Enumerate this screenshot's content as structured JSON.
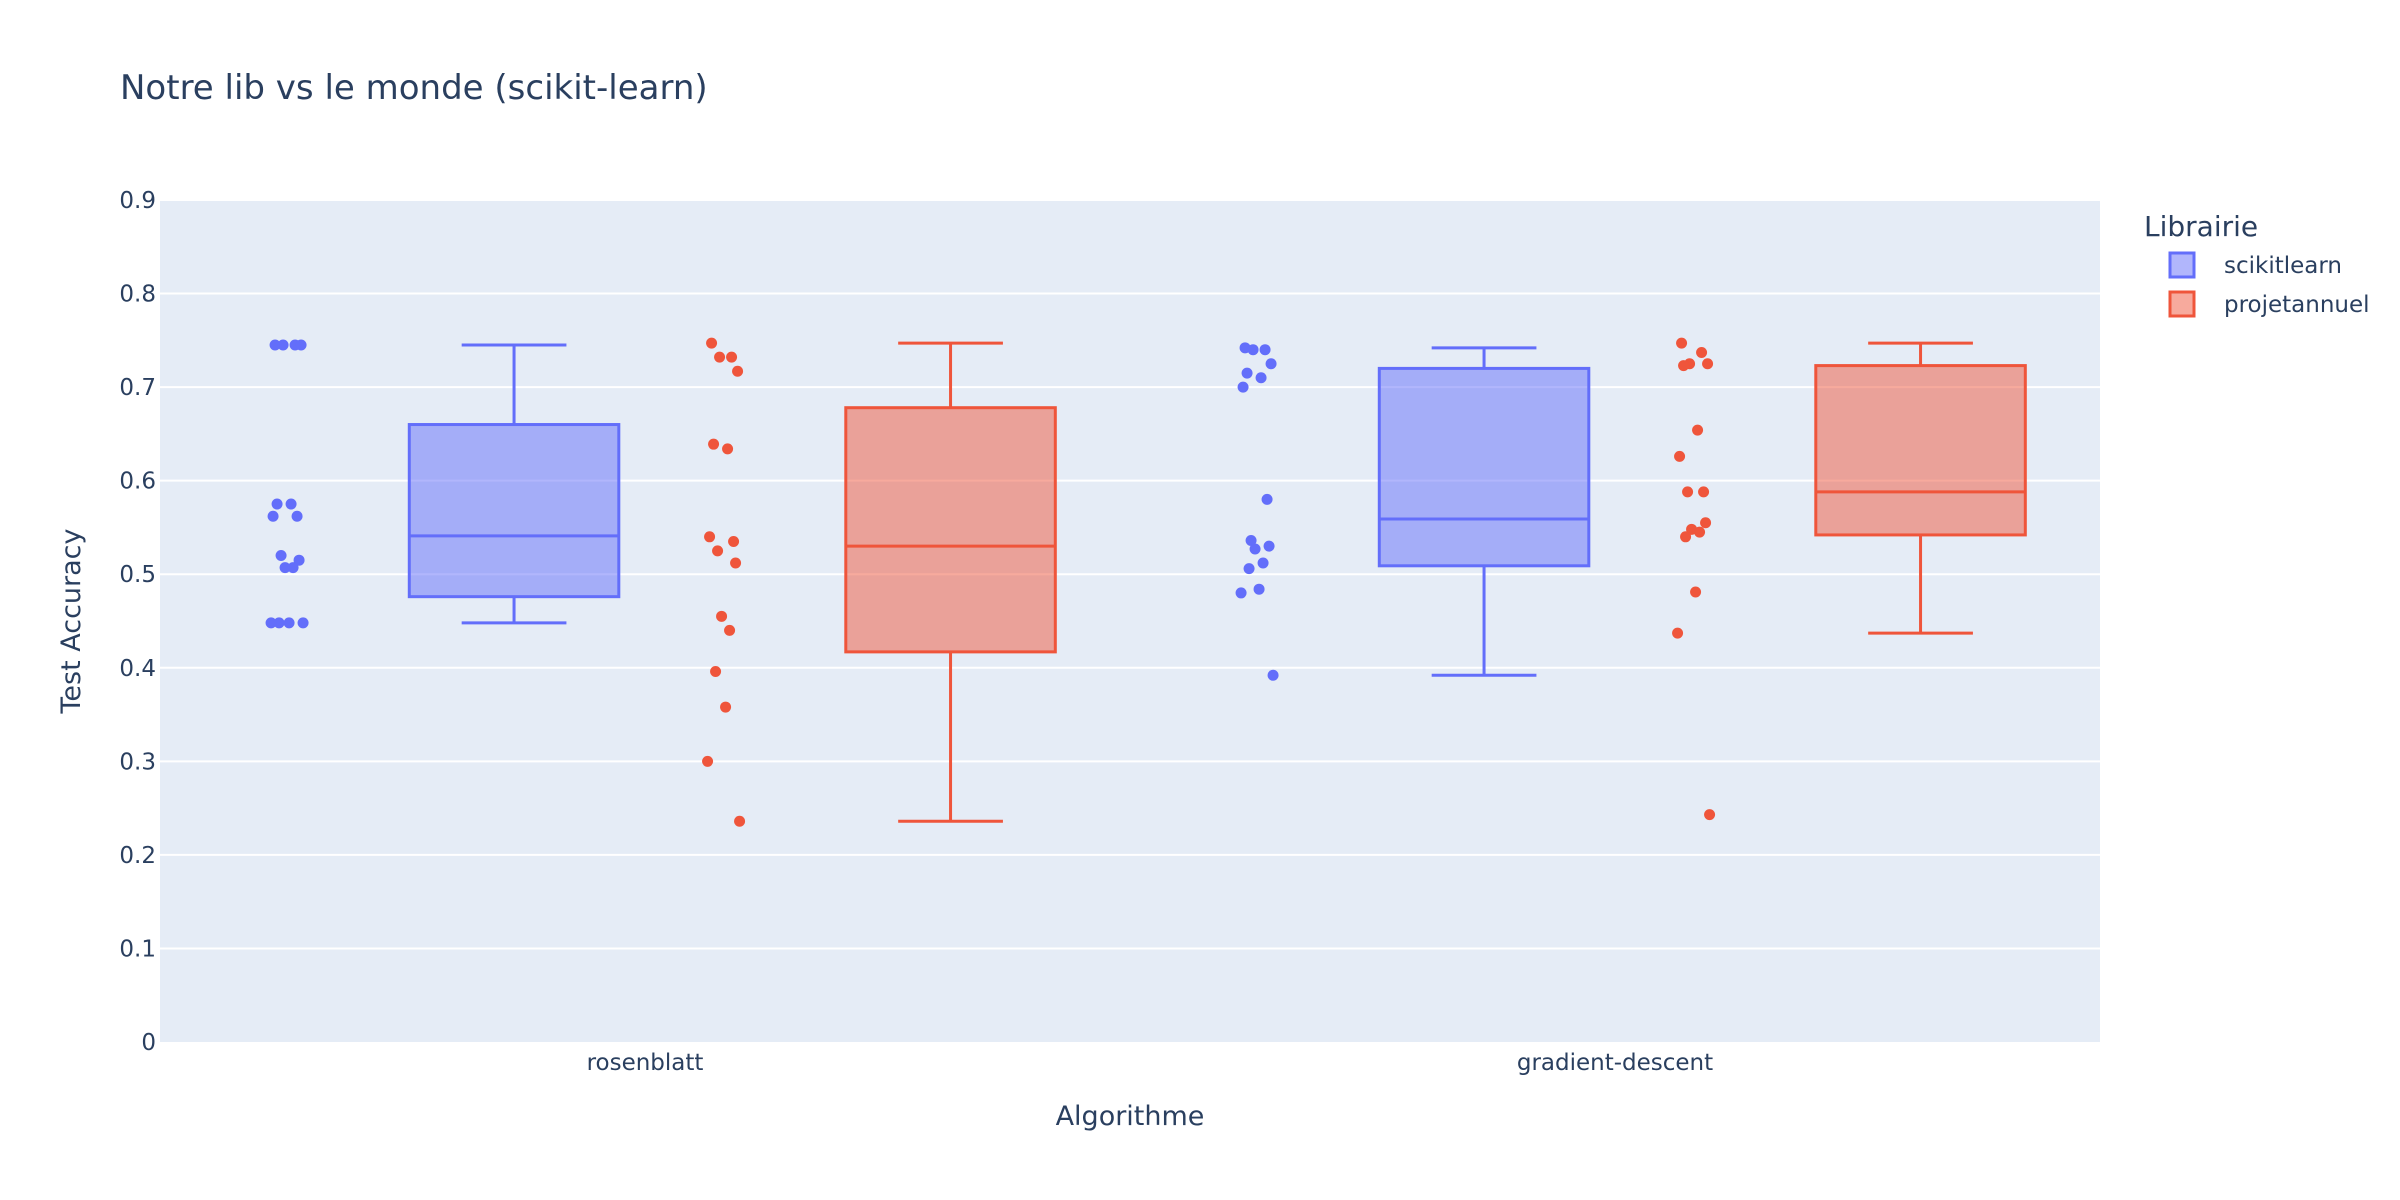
{
  "chart_data": {
    "type": "box",
    "title": "Notre lib vs le monde (scikit-learn)",
    "xlabel": "Algorithme",
    "ylabel": "Test Accuracy",
    "ylim": [
      0,
      0.9
    ],
    "yticks": [
      0,
      0.1,
      0.2,
      0.3,
      0.4,
      0.5,
      0.6,
      0.7,
      0.8,
      0.9
    ],
    "ytick_labels": [
      "0",
      "0.1",
      "0.2",
      "0.3",
      "0.4",
      "0.5",
      "0.6",
      "0.7",
      "0.8",
      "0.9"
    ],
    "categories": [
      "rosenblatt",
      "gradient-descent"
    ],
    "grid": true,
    "legend_position": "top-right",
    "legend_title": "Librairie",
    "series": [
      {
        "name": "scikitlearn",
        "color": "#636efa",
        "fill": "rgba(99,110,250,0.5)",
        "boxes": [
          {
            "category": "rosenblatt",
            "min": 0.448,
            "q1": 0.476,
            "median": 0.541,
            "q3": 0.66,
            "max": 0.745,
            "points": [
              0.745,
              0.745,
              0.745,
              0.745,
              0.575,
              0.575,
              0.562,
              0.562,
              0.52,
              0.515,
              0.507,
              0.507,
              0.448,
              0.448,
              0.448,
              0.448
            ]
          },
          {
            "category": "gradient-descent",
            "min": 0.392,
            "q1": 0.509,
            "median": 0.559,
            "q3": 0.72,
            "max": 0.742,
            "points": [
              0.742,
              0.74,
              0.74,
              0.725,
              0.715,
              0.71,
              0.7,
              0.58,
              0.536,
              0.53,
              0.527,
              0.512,
              0.506,
              0.484,
              0.48,
              0.392
            ]
          }
        ]
      },
      {
        "name": "projetannuel",
        "color": "#ef553b",
        "fill": "rgba(239,85,59,0.5)",
        "boxes": [
          {
            "category": "rosenblatt",
            "min": 0.236,
            "q1": 0.417,
            "median": 0.53,
            "q3": 0.678,
            "max": 0.747,
            "points": [
              0.747,
              0.732,
              0.732,
              0.717,
              0.639,
              0.634,
              0.54,
              0.535,
              0.525,
              0.512,
              0.455,
              0.44,
              0.396,
              0.358,
              0.3,
              0.236
            ]
          },
          {
            "category": "gradient-descent",
            "min": 0.437,
            "q1": 0.542,
            "median": 0.588,
            "q3": 0.723,
            "max": 0.747,
            "points": [
              0.747,
              0.737,
              0.725,
              0.725,
              0.723,
              0.654,
              0.626,
              0.588,
              0.588,
              0.555,
              0.548,
              0.545,
              0.54,
              0.481,
              0.437,
              0.243
            ]
          }
        ]
      }
    ]
  }
}
